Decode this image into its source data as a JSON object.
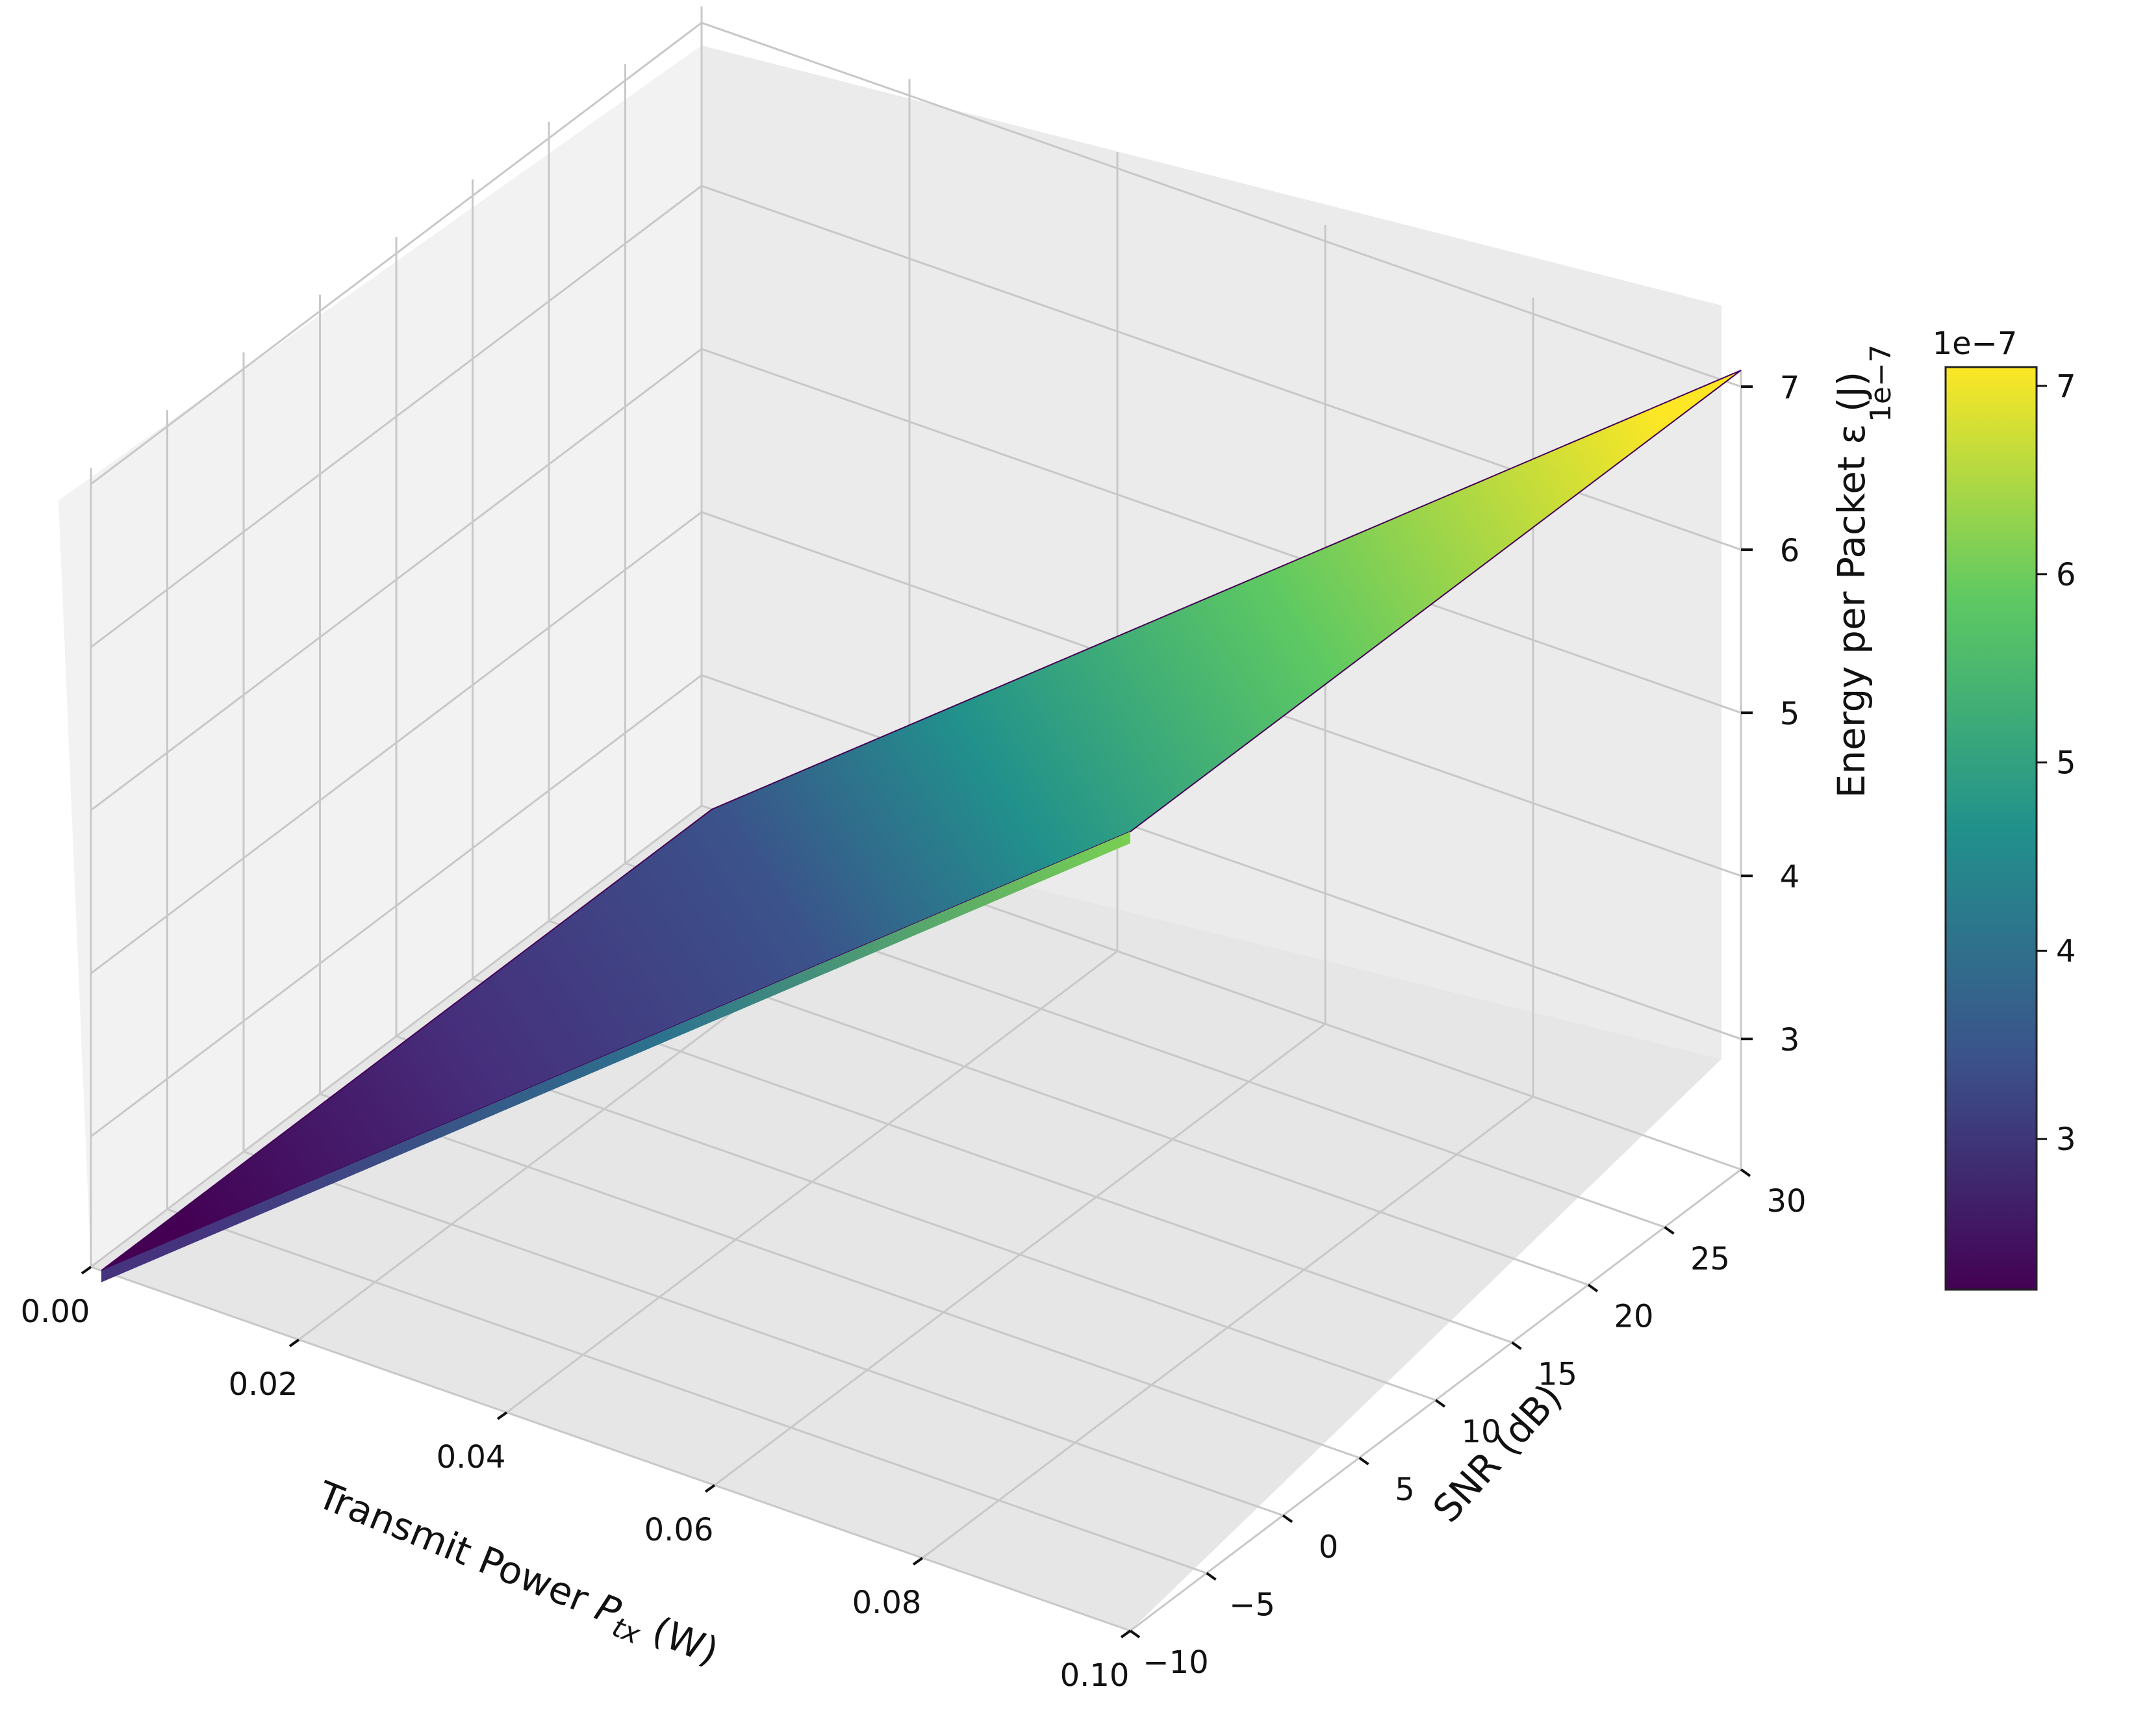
{
  "chart_data": {
    "type": "surface",
    "title": "",
    "xlabel": "Transmit Power P_tx (W)",
    "xlabel_main": "Transmit Power ",
    "xlabel_sym": "P",
    "xlabel_sub": "tx",
    "xlabel_unit": " (W)",
    "ylabel": "SNR (dB)",
    "zlabel": "Energy per Packet ε (J)",
    "z_offset_label": "1e−7",
    "xlim": [
      0.0,
      0.1
    ],
    "ylim": [
      -10,
      30
    ],
    "zlim": [
      2.2,
      7.1
    ],
    "z_scale": "1e-7",
    "x_ticks": [
      "0.00",
      "0.02",
      "0.04",
      "0.06",
      "0.08",
      "0.10"
    ],
    "y_ticks": [
      "−10",
      "−5",
      "0",
      "5",
      "10",
      "15",
      "20",
      "25",
      "30"
    ],
    "z_ticks": [
      "3",
      "4",
      "5",
      "6",
      "7"
    ],
    "x_grid": [
      0.0,
      0.02,
      0.04,
      0.06,
      0.08,
      0.1
    ],
    "y_grid": [
      -10,
      -5,
      0,
      5,
      10,
      15,
      20,
      25,
      30
    ],
    "z_grid": [
      3,
      4,
      5,
      6,
      7
    ],
    "surface_corners": [
      {
        "x": 0.001,
        "y": 30,
        "z": 2.2
      },
      {
        "x": 0.001,
        "y": -10,
        "z": 2.2
      },
      {
        "x": 0.1,
        "y": -10,
        "z": 7.1
      },
      {
        "x": 0.1,
        "y": 30,
        "z": 7.1
      }
    ],
    "colormap": "viridis",
    "colormap_stops": [
      "#440154",
      "#3b528b",
      "#21918c",
      "#5ec962",
      "#fde725"
    ],
    "colorbar": {
      "ticks": [
        "3",
        "4",
        "5",
        "6",
        "7"
      ],
      "tick_values": [
        3,
        4,
        5,
        6,
        7
      ],
      "range": [
        2.2,
        7.1
      ],
      "offset_label": "1e−7"
    },
    "grid": true,
    "legend": "none"
  }
}
